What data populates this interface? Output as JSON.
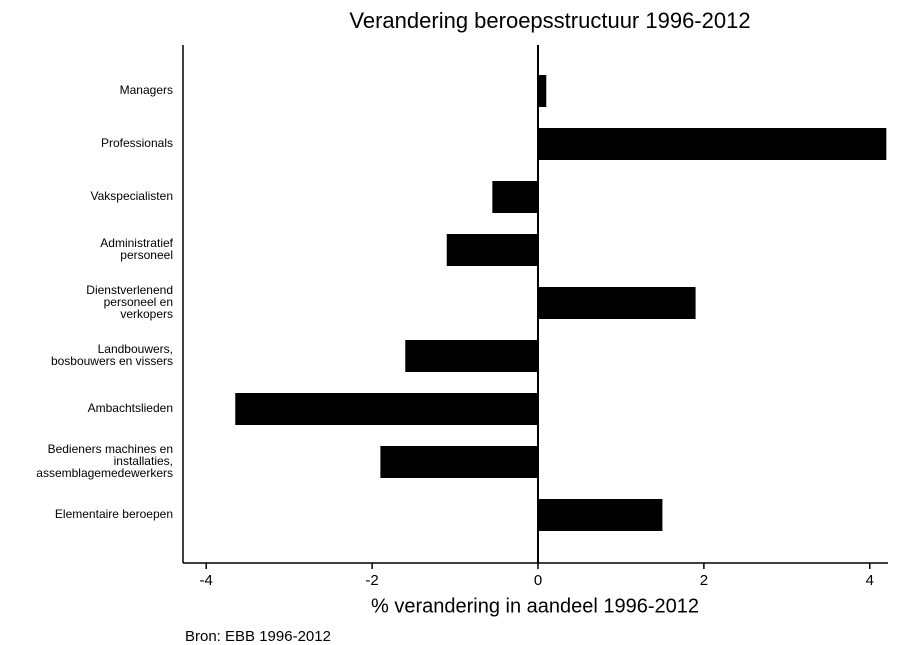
{
  "chart_data": {
    "type": "barh",
    "title": "Verandering beroepsstructuur 1996-2012",
    "xlabel": "% verandering in aandeel 1996-2012",
    "source": "Bron: EBB 1996-2012",
    "categories": [
      "Managers",
      "Professionals",
      "Vakspecialisten",
      "Administratief\npersoneel",
      "Dienstverlenend\npersoneel en\nverkopers",
      "Landbouwers,\nbosbouwers en vissers",
      "Ambachtslieden",
      "Bedieners machines en\ninstallaties,\nassemblagemedewerkers",
      "Elementaire beroepen"
    ],
    "values": [
      0.1,
      4.2,
      -0.55,
      -1.1,
      1.9,
      -1.6,
      -3.65,
      -1.9,
      1.5
    ],
    "color": "#000000",
    "xlim": [
      -4.28,
      4.22
    ],
    "xticks": [
      -4,
      -2,
      0,
      2,
      4
    ]
  }
}
